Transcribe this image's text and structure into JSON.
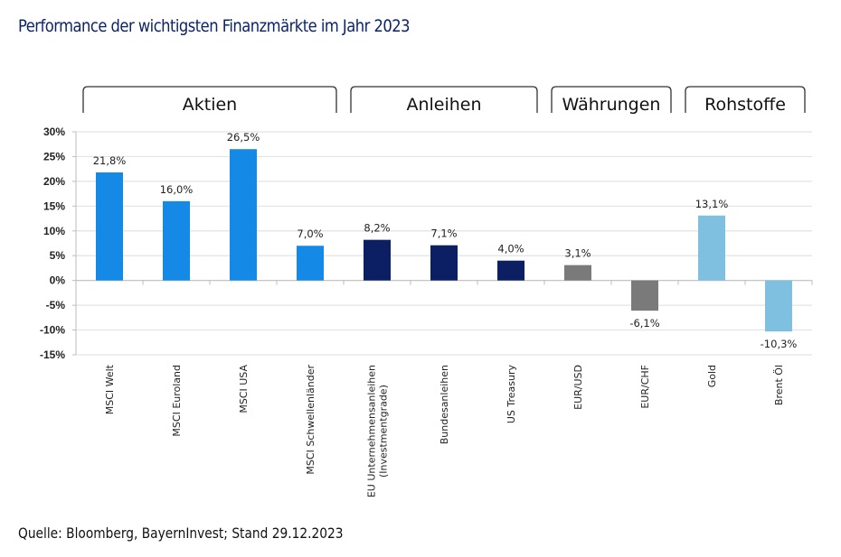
{
  "title": "Performance der wichtigsten Finanzmärkte im Jahr 2023",
  "source": "Quelle: Bloomberg, BayernInvest; Stand 29.12.2023",
  "chart_data": {
    "type": "bar",
    "title": "Performance der wichtigsten Finanzmärkte im Jahr 2023",
    "xlabel": "",
    "ylabel": "",
    "ylim": [
      -15,
      30
    ],
    "yticks": [
      30,
      25,
      20,
      15,
      10,
      5,
      0,
      -5,
      -10,
      -15
    ],
    "ytick_labels": [
      "30%",
      "25%",
      "20%",
      "15%",
      "10%",
      "5%",
      "0%",
      "-5%",
      "-10%",
      "-15%"
    ],
    "grid": true,
    "categories": [
      [
        "MSCI Welt"
      ],
      [
        "MSCI Euroland"
      ],
      [
        "MSCI USA"
      ],
      [
        "MSCI Schwellenländer"
      ],
      [
        "EU Unternehmensanleihen",
        "(Investmentgrade)"
      ],
      [
        "Bundesanleihen"
      ],
      [
        "US Treasury"
      ],
      [
        "EUR/USD"
      ],
      [
        "EUR/CHF"
      ],
      [
        "Gold"
      ],
      [
        "Brent Öl"
      ]
    ],
    "values": [
      21.8,
      16.0,
      26.5,
      7.0,
      8.2,
      7.1,
      4.0,
      3.1,
      -6.1,
      13.1,
      -10.3
    ],
    "data_labels": [
      "21,8%",
      "16,0%",
      "26,5%",
      "7,0%",
      "8,2%",
      "7,1%",
      "4,0%",
      "3,1%",
      "-6,1%",
      "13,1%",
      "-10,3%"
    ],
    "groups": [
      {
        "name": "Aktien",
        "start": 0,
        "end": 3,
        "color": "#1589e6"
      },
      {
        "name": "Anleihen",
        "start": 4,
        "end": 6,
        "color": "#0c1f63"
      },
      {
        "name": "Währungen",
        "start": 7,
        "end": 8,
        "color": "#7a7a7a"
      },
      {
        "name": "Rohstoffe",
        "start": 9,
        "end": 10,
        "color": "#7fbfdf"
      }
    ],
    "legend": "none"
  }
}
